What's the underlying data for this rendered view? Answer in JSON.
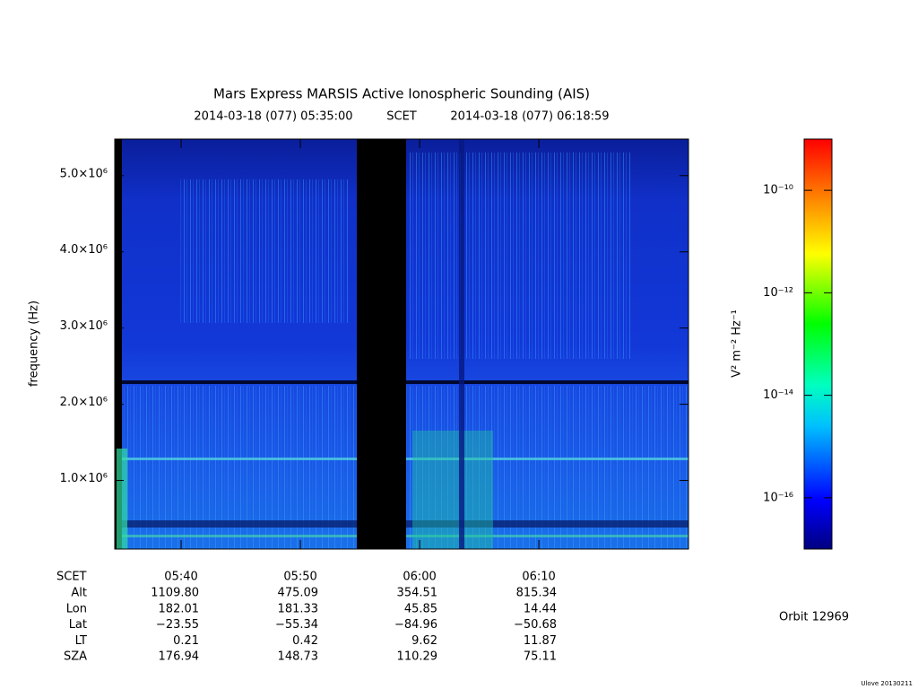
{
  "chart_data": {
    "type": "spectrogram",
    "title": "Mars Express MARSIS Active Ionospheric Sounding (AIS)",
    "start_time": "2014-03-18 (077) 05:35:00",
    "time_system": "SCET",
    "end_time": "2014-03-18 (077) 06:18:59",
    "y_label": "frequency (Hz)",
    "ylim": [
      100000,
      5480000
    ],
    "yticks": [
      {
        "value": 1000000,
        "label": "1.0×10⁶"
      },
      {
        "value": 2000000,
        "label": "2.0×10⁶"
      },
      {
        "value": 3000000,
        "label": "3.0×10⁶"
      },
      {
        "value": 4000000,
        "label": "4.0×10⁶"
      },
      {
        "value": 5000000,
        "label": "5.0×10⁶"
      }
    ],
    "xlim": [
      "05:34:26",
      "06:22:33"
    ],
    "xticks": [
      "05:40",
      "05:50",
      "06:00",
      "06:10"
    ],
    "colorbar": {
      "label": "V² m⁻² Hz⁻¹",
      "log": true,
      "lim": [
        1e-17,
        1e-09
      ],
      "ticks": [
        {
          "value": 1e-10,
          "label": "10⁻¹⁰"
        },
        {
          "value": 1e-12,
          "label": "10⁻¹²"
        },
        {
          "value": 1e-14,
          "label": "10⁻¹⁴"
        },
        {
          "value": 1e-16,
          "label": "10⁻¹⁶"
        }
      ]
    }
  },
  "ephemeris": {
    "time_label": "SCET",
    "rows": [
      {
        "label": "Alt",
        "values": [
          "1109.80",
          "475.09",
          "354.51",
          "815.34"
        ]
      },
      {
        "label": "Lon",
        "values": [
          "182.01",
          "181.33",
          "45.85",
          "14.44"
        ]
      },
      {
        "label": "Lat",
        "values": [
          "−23.55",
          "−55.34",
          "−84.96",
          "−50.68"
        ]
      },
      {
        "label": "LT",
        "values": [
          "0.21",
          "0.42",
          "9.62",
          "11.87"
        ]
      },
      {
        "label": "SZA",
        "values": [
          "176.94",
          "148.73",
          "110.29",
          "75.11"
        ]
      }
    ]
  },
  "orbit": "Orbit 12969",
  "footer": "Ulove 20130211"
}
